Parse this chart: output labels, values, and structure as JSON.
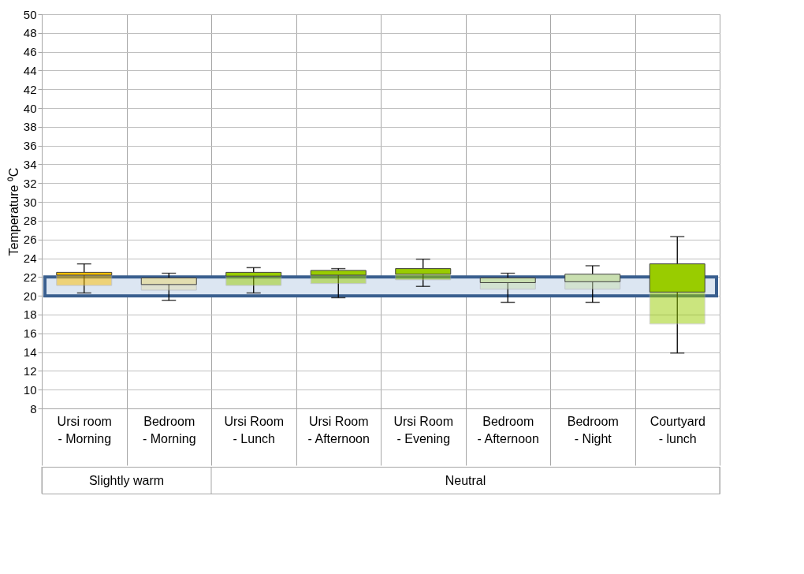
{
  "chart_data": {
    "type": "box",
    "ylabel": "Temperature ⁰C",
    "categories": [
      "Ursi room - Morning",
      "Bedroom - Morning",
      "Ursi Room - Lunch",
      "Ursi Room - Afternoon",
      "Ursi Room - Evening",
      "Bedroom - Afternoon",
      "Bedroom - Night",
      "Courtyard - lunch"
    ],
    "series": [
      {
        "color": "#ffc000",
        "boxes": [
          {
            "low": 20.3,
            "q1": 21.1,
            "median": 22.2,
            "q3": 22.5,
            "high": 23.4
          },
          null,
          null,
          null,
          null,
          null,
          null,
          null
        ]
      },
      {
        "color": "#e3deb0",
        "boxes": [
          null,
          {
            "low": 19.5,
            "q1": 20.6,
            "median": 21.2,
            "q3": 21.9,
            "high": 22.4
          },
          null,
          null,
          null,
          null,
          null,
          null
        ]
      },
      {
        "color": "#99cc00",
        "boxes": [
          null,
          null,
          {
            "low": 20.3,
            "q1": 21.1,
            "median": 22.1,
            "q3": 22.5,
            "high": 23.0
          },
          {
            "low": 19.8,
            "q1": 21.3,
            "median": 22.2,
            "q3": 22.7,
            "high": 22.9
          },
          {
            "low": 21.0,
            "q1": 21.7,
            "median": 22.3,
            "q3": 22.9,
            "high": 23.9
          },
          null,
          null,
          {
            "low": 13.9,
            "q1": 17.0,
            "median": 20.4,
            "q3": 23.4,
            "high": 26.3
          }
        ]
      },
      {
        "color": "#c9dfb0",
        "boxes": [
          null,
          null,
          null,
          null,
          null,
          {
            "low": 19.3,
            "q1": 20.7,
            "median": 21.4,
            "q3": 21.9,
            "high": 22.4
          },
          {
            "low": 19.3,
            "q1": 20.7,
            "median": 21.5,
            "q3": 22.3,
            "high": 23.2
          },
          null
        ]
      }
    ],
    "bands": [
      {
        "axis": "y",
        "from": 20,
        "to": 22,
        "color": "#dce6f2"
      }
    ],
    "annotations": [
      "Slightly warm",
      "Neutral"
    ],
    "ylim": [
      8,
      50
    ],
    "yticks": [
      8,
      10,
      12,
      14,
      16,
      18,
      20,
      22,
      24,
      26,
      28,
      30,
      32,
      34,
      36,
      38,
      40,
      42,
      44,
      46,
      48,
      50
    ],
    "grid": "y",
    "legend": false
  }
}
